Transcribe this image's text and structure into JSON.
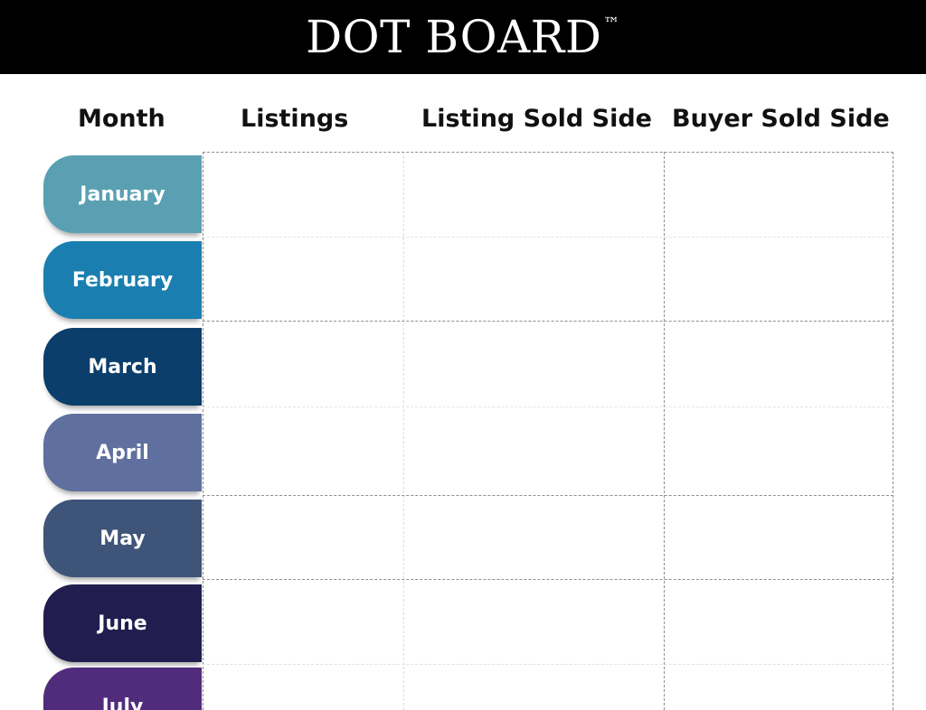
{
  "header": {
    "title": "DOT BOARD",
    "trademark": "™",
    "background": "#000000"
  },
  "columns": {
    "month": "Month",
    "listings": "Listings",
    "listing_sold_side": "Listing Sold Side",
    "buyer_sold_side": "Buyer Sold Side"
  },
  "months": [
    {
      "label": "January",
      "color": "#5aa0b2"
    },
    {
      "label": "February",
      "color": "#1a7fb0"
    },
    {
      "label": "March",
      "color": "#0b3e6b"
    },
    {
      "label": "April",
      "color": "#5f709f"
    },
    {
      "label": "May",
      "color": "#3e5478"
    },
    {
      "label": "June",
      "color": "#211e4f"
    },
    {
      "label": "July",
      "color": "#512c7c"
    }
  ]
}
